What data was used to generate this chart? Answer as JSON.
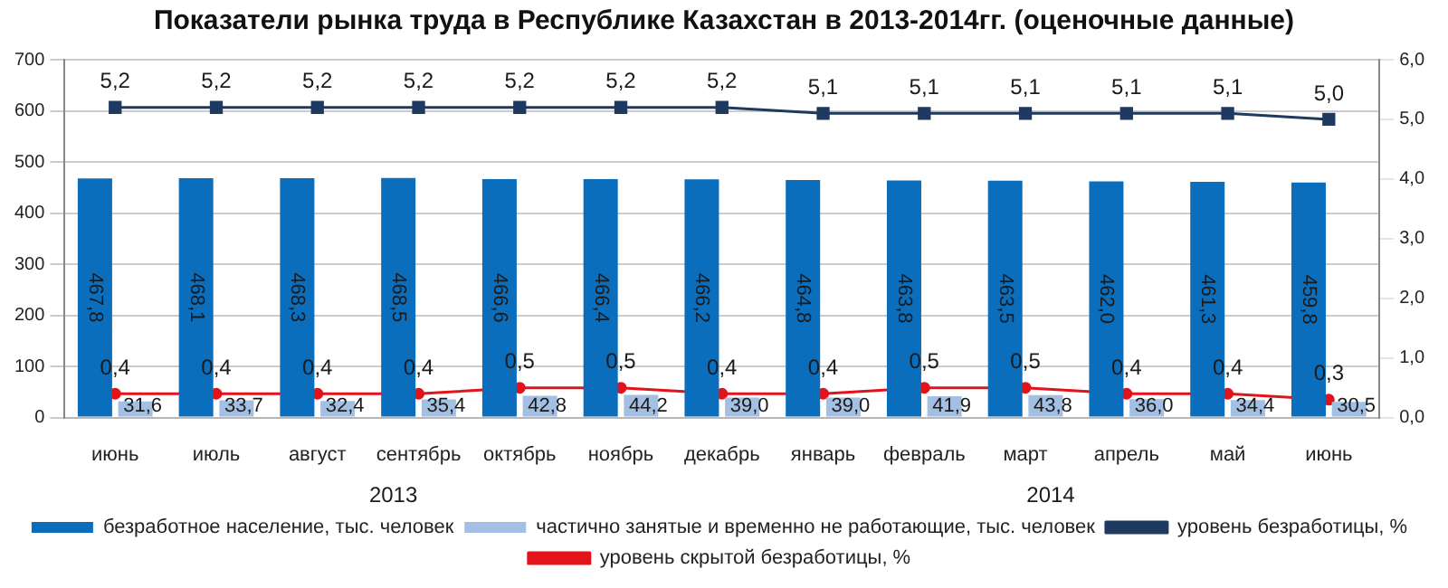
{
  "chart_data": {
    "type": "bar",
    "title": "Показатели рынка труда в Республике Казахстан в 2013-2014гг. (оценочные данные)",
    "categories": [
      "июнь",
      "июль",
      "август",
      "сентябрь",
      "октябрь",
      "ноябрь",
      "декабрь",
      "январь",
      "февраль",
      "март",
      "апрель",
      "май",
      "июнь"
    ],
    "series": [
      {
        "name": "безработное население, тыс. человек",
        "color": "#0a6ebd",
        "values": [
          467.8,
          468.1,
          468.3,
          468.5,
          466.6,
          466.4,
          466.2,
          464.8,
          463.8,
          463.5,
          462.0,
          461.3,
          459.8
        ],
        "value_labels": [
          "467,8",
          "468,1",
          "468,3",
          "468,5",
          "466,6",
          "466,4",
          "466,2",
          "464,8",
          "463,8",
          "463,5",
          "462,0",
          "461,3",
          "459,8"
        ]
      },
      {
        "name": "частично занятые и временно не работающие, тыс. человек",
        "color": "#a3bfe3",
        "values": [
          31.6,
          33.7,
          32.4,
          35.4,
          42.8,
          44.2,
          39.0,
          39.0,
          41.9,
          43.8,
          36.0,
          34.4,
          30.5
        ],
        "value_labels": [
          "31,6",
          "33,7",
          "32,4",
          "35,4",
          "42,8",
          "44,2",
          "39,0",
          "39,0",
          "41,9",
          "43,8",
          "36,0",
          "34,4",
          "30,5"
        ]
      },
      {
        "name": "уровень безработицы, %",
        "type": "line",
        "axis": "y2",
        "marker": "square",
        "color": "#1f3a5f",
        "values": [
          5.2,
          5.2,
          5.2,
          5.2,
          5.2,
          5.2,
          5.2,
          5.1,
          5.1,
          5.1,
          5.1,
          5.1,
          5.0
        ],
        "value_labels": [
          "5,2",
          "5,2",
          "5,2",
          "5,2",
          "5,2",
          "5,2",
          "5,2",
          "5,1",
          "5,1",
          "5,1",
          "5,1",
          "5,1",
          "5,0"
        ]
      },
      {
        "name": "уровень скрытой безработицы, %",
        "type": "line",
        "axis": "y2",
        "marker": "circle",
        "color": "#e3131b",
        "values": [
          0.4,
          0.4,
          0.4,
          0.4,
          0.5,
          0.5,
          0.4,
          0.4,
          0.5,
          0.5,
          0.4,
          0.4,
          0.3
        ],
        "value_labels": [
          "0,4",
          "0,4",
          "0,4",
          "0,4",
          "0,5",
          "0,5",
          "0,4",
          "0,4",
          "0,5",
          "0,5",
          "0,4",
          "0,4",
          "0,3"
        ]
      }
    ],
    "ylim": [
      0,
      700
    ],
    "yticks": [
      0,
      100,
      200,
      300,
      400,
      500,
      600,
      700
    ],
    "y2lim": [
      0,
      6
    ],
    "y2ticks": [
      {
        "value": 0,
        "label": "0,0"
      },
      {
        "value": 1,
        "label": "1,0"
      },
      {
        "value": 2,
        "label": "2,0"
      },
      {
        "value": 3,
        "label": "3,0"
      },
      {
        "value": 4,
        "label": "4,0"
      },
      {
        "value": 5,
        "label": "5,0"
      },
      {
        "value": 6,
        "label": "6,0"
      }
    ],
    "grid": "y",
    "legend": "bottom",
    "annotations": [
      "2013",
      "2014"
    ]
  }
}
